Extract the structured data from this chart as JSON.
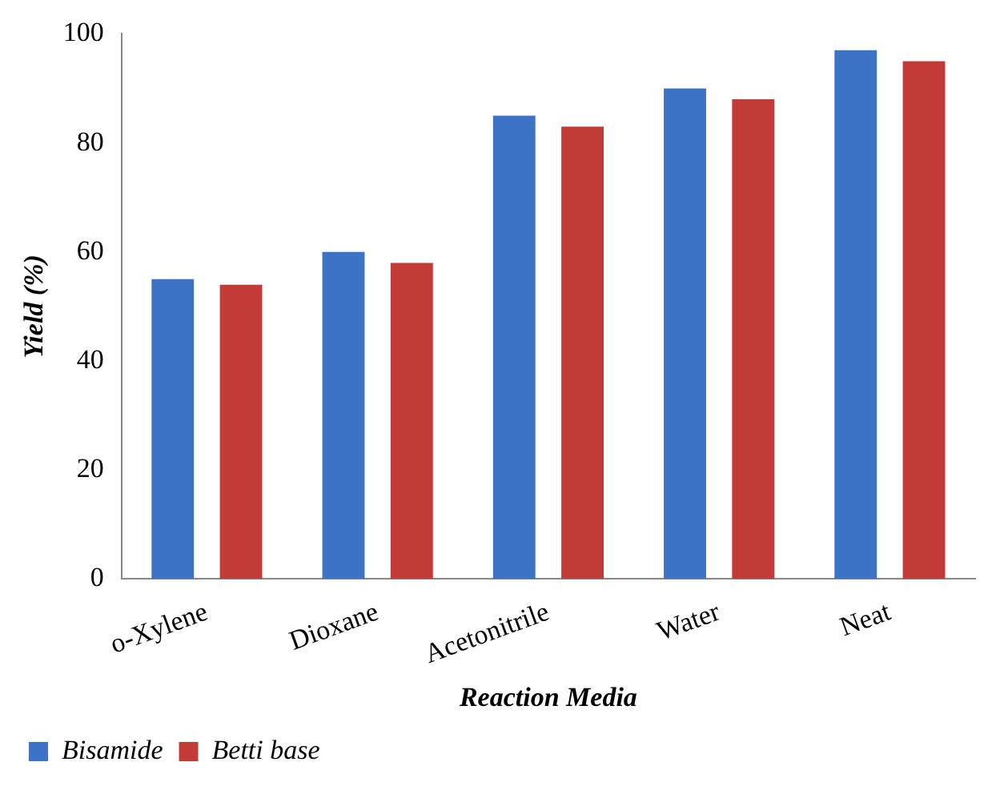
{
  "chart_data": {
    "type": "bar",
    "xlabel": "Reaction Media",
    "ylabel": "Yield (%)",
    "categories": [
      "o-Xylene",
      "Dioxane",
      "Acetonitrile",
      "Water",
      "Neat"
    ],
    "series": [
      {
        "name": "Bisamide",
        "color": "#3d73c7",
        "values": [
          55,
          60,
          85,
          90,
          97
        ]
      },
      {
        "name": "Betti base",
        "color": "#c33b37",
        "values": [
          54,
          58,
          83,
          88,
          95
        ]
      }
    ],
    "ylim": [
      0,
      100
    ],
    "yticks": [
      0,
      20,
      40,
      60,
      80,
      100
    ],
    "grid": false,
    "legend": "bottom left"
  }
}
